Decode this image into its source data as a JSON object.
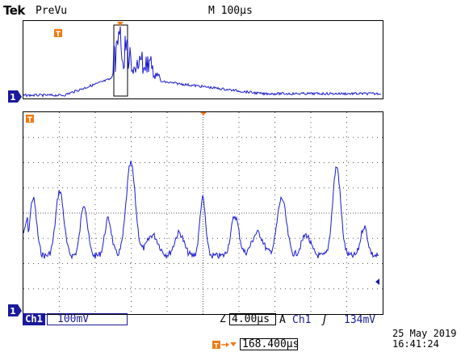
{
  "header": {
    "brand": "Tek",
    "mode": "PreVu",
    "timebase": "M 100µs"
  },
  "markers": {
    "channel": "1",
    "trigger": "T"
  },
  "status": {
    "channel_label": "Ch1",
    "channel_scale": "100mV",
    "zoom_prefix": "Z",
    "zoom_scale": "4.00µs",
    "trigger_mode": "A",
    "trigger_source": "Ch1",
    "trigger_slope": "ʃ",
    "trigger_level": "134mV",
    "position": "168.400µs"
  },
  "datetime": {
    "date": "25 May 2019",
    "time": "16:41:24"
  },
  "colors": {
    "trace": "#1a1ad4",
    "trigger": "#f07a10",
    "grid": "#555555"
  }
}
